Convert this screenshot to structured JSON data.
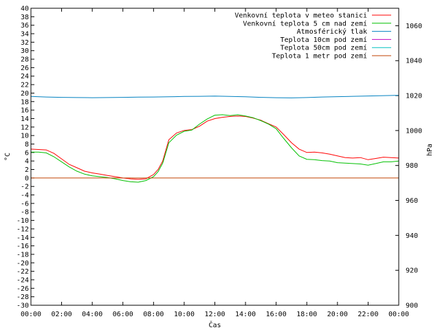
{
  "chart_data": {
    "type": "line",
    "xlabel": "Čas",
    "ylabel_left": "°C",
    "ylabel_right": "hPa",
    "x_range_hours": [
      0,
      24
    ],
    "x_tick_labels": [
      "00:00",
      "02:00",
      "04:00",
      "06:00",
      "08:00",
      "10:00",
      "12:00",
      "14:00",
      "16:00",
      "18:00",
      "20:00",
      "22:00",
      "00:00"
    ],
    "ylim_left": [
      -30,
      40
    ],
    "y_left_step": 2,
    "ylim_right": [
      900,
      1070
    ],
    "y_right_ticks": [
      900,
      920,
      940,
      960,
      980,
      1000,
      1020,
      1040,
      1060
    ],
    "grid": false,
    "legend_position": "top-right",
    "series": [
      {
        "name": "Venkovní teplota v meteo stanici",
        "color": "#ff0000",
        "axis": "left",
        "x": [
          0,
          0.5,
          1,
          1.5,
          2,
          2.5,
          3,
          3.5,
          4,
          4.5,
          5,
          5.5,
          6,
          6.5,
          7,
          7.5,
          8,
          8.3,
          8.6,
          9,
          9.5,
          10,
          10.5,
          11,
          11.5,
          12,
          12.5,
          13,
          13.5,
          14,
          14.5,
          15,
          15.5,
          16,
          16.5,
          17,
          17.5,
          18,
          18.5,
          19,
          19.5,
          20,
          20.5,
          21,
          21.5,
          22,
          22.5,
          23,
          23.5,
          24
        ],
        "y": [
          6.8,
          6.7,
          6.6,
          5.8,
          4.5,
          3.2,
          2.4,
          1.6,
          1.2,
          0.9,
          0.6,
          0.3,
          0.0,
          -0.2,
          -0.3,
          -0.2,
          0.8,
          2.0,
          4.0,
          9.0,
          10.6,
          11.2,
          11.4,
          12.2,
          13.4,
          14.0,
          14.3,
          14.5,
          14.6,
          14.5,
          14.1,
          13.6,
          12.8,
          12.0,
          10.2,
          8.3,
          6.8,
          6.0,
          6.1,
          5.9,
          5.6,
          5.2,
          4.8,
          4.7,
          4.8,
          4.3,
          4.6,
          4.9,
          4.8,
          4.7
        ]
      },
      {
        "name": "Venkovní teplota 5 cm nad zemí",
        "color": "#00c000",
        "axis": "left",
        "x": [
          0,
          0.5,
          1,
          1.5,
          2,
          2.5,
          3,
          3.5,
          4,
          4.5,
          5,
          5.5,
          6,
          6.5,
          7,
          7.5,
          8,
          8.3,
          8.6,
          9,
          9.5,
          10,
          10.5,
          11,
          11.5,
          12,
          12.5,
          13,
          13.5,
          14,
          14.5,
          15,
          15.5,
          16,
          16.5,
          17,
          17.5,
          18,
          18.5,
          19,
          19.5,
          20,
          20.5,
          21,
          21.5,
          22,
          22.5,
          23,
          23.5,
          24
        ],
        "y": [
          6.1,
          6.1,
          5.9,
          5.0,
          3.8,
          2.6,
          1.6,
          0.9,
          0.5,
          0.3,
          0.1,
          -0.2,
          -0.6,
          -0.9,
          -1.0,
          -0.6,
          0.3,
          1.5,
          3.5,
          8.3,
          10.1,
          11.0,
          11.3,
          12.7,
          13.9,
          14.8,
          14.9,
          14.7,
          14.9,
          14.6,
          14.2,
          13.5,
          12.7,
          11.6,
          9.3,
          7.1,
          5.2,
          4.4,
          4.3,
          4.1,
          4.0,
          3.6,
          3.5,
          3.4,
          3.3,
          3.0,
          3.4,
          3.8,
          3.8,
          4.0
        ]
      },
      {
        "name": "Atmosférický tlak",
        "color": "#0080c0",
        "axis": "right",
        "x": [
          0,
          1,
          2,
          3,
          4,
          5,
          6,
          7,
          8,
          9,
          10,
          11,
          12,
          13,
          14,
          15,
          16,
          17,
          18,
          19,
          20,
          21,
          22,
          23,
          24
        ],
        "y": [
          1019.5,
          1019.2,
          1019.0,
          1018.9,
          1018.8,
          1018.9,
          1019.0,
          1019.1,
          1019.2,
          1019.3,
          1019.5,
          1019.6,
          1019.7,
          1019.5,
          1019.3,
          1019.0,
          1018.8,
          1018.7,
          1018.9,
          1019.2,
          1019.4,
          1019.6,
          1019.8,
          1020.0,
          1020.2
        ]
      },
      {
        "name": "Teplota 10cm pod zemí",
        "color": "#c000c0",
        "axis": "left",
        "x": [],
        "y": []
      },
      {
        "name": "Teplota 50cm pod zemí",
        "color": "#00c0c0",
        "axis": "left",
        "x": [],
        "y": []
      },
      {
        "name": "Teplota 1 metr pod zemí",
        "color": "#c04000",
        "axis": "left",
        "x": [
          0,
          24
        ],
        "y": [
          0,
          0
        ]
      }
    ]
  }
}
